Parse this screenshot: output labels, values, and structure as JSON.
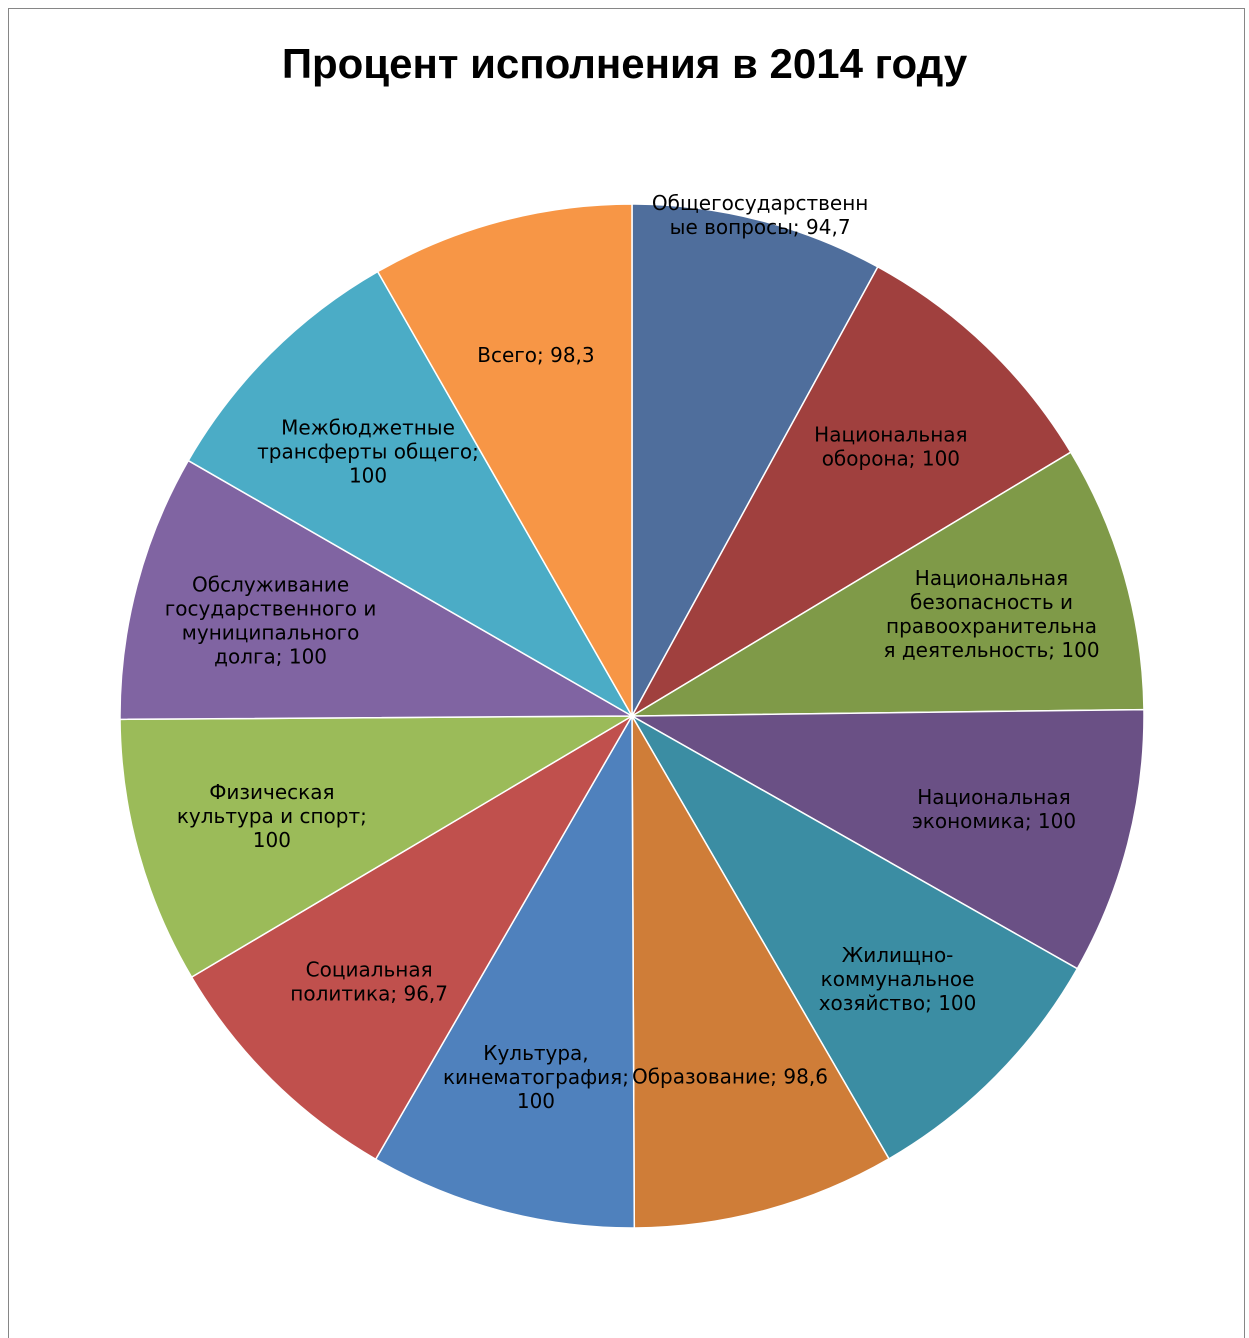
{
  "chart_data": {
    "type": "pie",
    "title": "Процент исполнения в 2014 году",
    "slices": [
      {
        "label_lines": [
          "Общегосударственн",
          "ые вопросы; 94,7"
        ],
        "category": "Общегосударственные вопросы",
        "value": 94.7,
        "color": "#4F6E9C"
      },
      {
        "label_lines": [
          "Национальная",
          "оборона; 100"
        ],
        "category": "Национальная оборона",
        "value": 100,
        "color": "#A0403E"
      },
      {
        "label_lines": [
          "Национальная",
          "безопасность и",
          "правоохранительна",
          "я деятельность; 100"
        ],
        "category": "Национальная безопасность и правоохранительная деятельность",
        "value": 100,
        "color": "#7F9A48"
      },
      {
        "label_lines": [
          "Национальная",
          "экономика; 100"
        ],
        "category": "Национальная экономика",
        "value": 100,
        "color": "#6A5085"
      },
      {
        "label_lines": [
          "Жилищно-",
          "коммунальное",
          "хозяйство; 100"
        ],
        "category": "Жилищно-коммунальное хозяйство",
        "value": 100,
        "color": "#3B8DA3"
      },
      {
        "label_lines": [
          "Образование; 98,6"
        ],
        "category": "Образование",
        "value": 98.6,
        "color": "#CF7D38"
      },
      {
        "label_lines": [
          "Культура,",
          "кинематография;",
          "100"
        ],
        "category": "Культура, кинематография",
        "value": 100,
        "color": "#4F81BD"
      },
      {
        "label_lines": [
          "Социальная",
          "политика; 96,7"
        ],
        "category": "Социальная политика",
        "value": 96.7,
        "color": "#C0504D"
      },
      {
        "label_lines": [
          "Физическая",
          "культура и спорт;",
          "100"
        ],
        "category": "Физическая культура и спорт",
        "value": 100,
        "color": "#9BBB59"
      },
      {
        "label_lines": [
          "Обслуживание",
          "государственного и",
          "муниципального",
          "долга; 100"
        ],
        "category": "Обслуживание государственного и муниципального долга",
        "value": 100,
        "color": "#8064A2"
      },
      {
        "label_lines": [
          "Межбюджетные",
          "трансферты общего;",
          "100"
        ],
        "category": "Межбюджетные трансферты общего",
        "value": 100,
        "color": "#4BACC6"
      },
      {
        "label_lines": [
          "Всего; 98,3"
        ],
        "category": "Всего",
        "value": 98.3,
        "color": "#F79646"
      }
    ],
    "start_angle": "12 o'clock",
    "direction": "clockwise",
    "legend": "none",
    "data_labels": "category; value"
  }
}
